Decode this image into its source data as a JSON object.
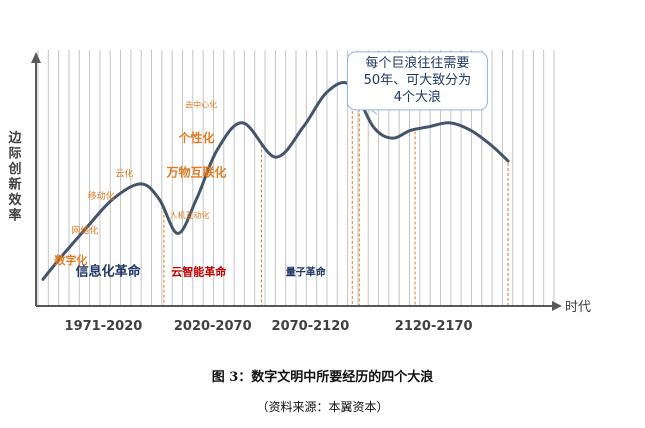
{
  "chart_data": {
    "type": "line",
    "ylabel": "边际创新效率",
    "xlabel": "时代",
    "x": [
      0,
      8,
      18,
      30,
      42,
      50,
      58,
      66,
      75,
      86,
      100,
      112,
      122,
      132,
      142,
      150,
      158,
      166,
      175,
      184,
      193,
      200
    ],
    "y": [
      4,
      10,
      17,
      25,
      29,
      25,
      16,
      25,
      38,
      45,
      36,
      44,
      53,
      55,
      44,
      41,
      43,
      44,
      45,
      43,
      39,
      35
    ],
    "xlim": [
      -3,
      212
    ],
    "ylim": [
      -3,
      62
    ],
    "eras": [
      {
        "label": "1971-2020",
        "x": [
          0,
          52
        ]
      },
      {
        "label": "2020-2070",
        "x": [
          52,
          94
        ]
      },
      {
        "label": "2070-2120",
        "x": [
          94,
          136
        ]
      },
      {
        "label": "2120-2170",
        "x": [
          136,
          200
        ]
      }
    ],
    "dividers_x": [
      52,
      94,
      133,
      136,
      160,
      200
    ],
    "gridlines": 51,
    "phases": [
      {
        "label": "信息化革命",
        "x": 28,
        "y": 5
      },
      {
        "label": "云智能革命",
        "x": 67,
        "y": 5
      },
      {
        "label": "量子革命",
        "x": 113,
        "y": 5
      }
    ],
    "annotations": [
      {
        "label": "数字化",
        "x": 12,
        "y": 8
      },
      {
        "label": "网络化",
        "x": 18,
        "y": 16
      },
      {
        "label": "移动化",
        "x": 25,
        "y": 25
      },
      {
        "label": "云化",
        "x": 35,
        "y": 31
      },
      {
        "label": "人机互动化",
        "x": 63,
        "y": 20
      },
      {
        "label": "万物互联化",
        "x": 66,
        "y": 31
      },
      {
        "label": "个性化",
        "x": 66,
        "y": 40
      },
      {
        "label": "去中心化",
        "x": 68,
        "y": 49
      }
    ],
    "callout": {
      "lines": [
        "每个巨浪往往需要",
        "50年、可大致分为",
        "4个大浪"
      ],
      "x": 161,
      "y": 56
    }
  },
  "caption": "图 3：数字文明中所要经历的四个大浪",
  "source": "（资料来源：本翼资本）",
  "colors": {
    "curve": "#44546a",
    "grid": "#c4c4c4",
    "orange": "#e27b23",
    "red": "#c00000",
    "navy": "#1f3864",
    "axis": "#595959",
    "callout_border": "#8db3e2",
    "era_text": "#404040"
  }
}
